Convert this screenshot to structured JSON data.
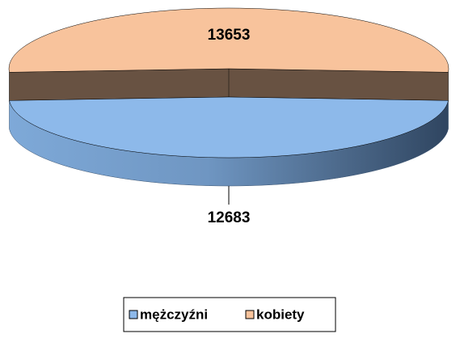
{
  "chart_data": {
    "type": "pie",
    "categories": [
      "mężczyźni",
      "kobiety"
    ],
    "values": [
      12683,
      13653
    ],
    "colors": [
      "#8db9ea",
      "#f8c39c"
    ],
    "legend": "bottom"
  }
}
